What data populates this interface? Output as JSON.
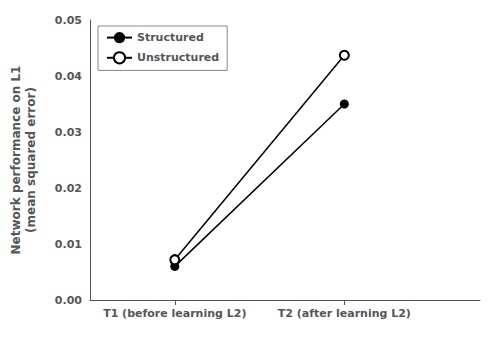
{
  "chart_data": {
    "type": "line",
    "ylabel": "Network performance on L1\n(mean squared error)",
    "x": [
      1,
      2
    ],
    "series": [
      {
        "name": "Structured",
        "color": "#000000",
        "marker": "circle",
        "values": [
          0.006,
          0.035
        ]
      },
      {
        "name": "Unstructured",
        "color": "#000000",
        "marker": "open_circle",
        "values": [
          0.0072,
          0.0437
        ]
      }
    ],
    "xlim": [
      0.5,
      2.8
    ],
    "xticks": [
      {
        "value": 1,
        "label": "T1 (before learning L2)"
      },
      {
        "value": 2,
        "label": "T2 (after learning L2)"
      }
    ],
    "ylim": [
      0.0,
      0.05
    ],
    "yticks": [
      {
        "value": 0,
        "label": "0.00"
      },
      0.01,
      0.02,
      0.03,
      0.04,
      0.05
    ],
    "grid": false,
    "legend": "upper left"
  }
}
